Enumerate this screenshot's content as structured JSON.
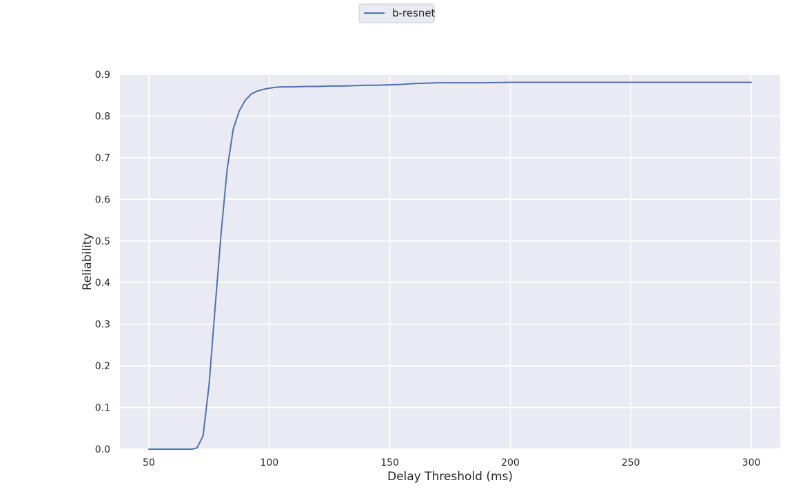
{
  "chart_data": {
    "type": "line",
    "title": "",
    "xlabel": "Delay Threshold (ms)",
    "ylabel": "Reliability",
    "xlim": [
      38,
      312
    ],
    "ylim": [
      0,
      0.9
    ],
    "xticks": [
      50,
      100,
      150,
      200,
      250,
      300
    ],
    "yticks": [
      0.0,
      0.1,
      0.2,
      0.3,
      0.4,
      0.5,
      0.6,
      0.7,
      0.8,
      0.9
    ],
    "grid": true,
    "legend_position": "top-center",
    "series": [
      {
        "name": "b-resnet",
        "color": "#4c72b0",
        "x": [
          50,
          55,
          60,
          65,
          68,
          70,
          72.5,
          75,
          77.5,
          80,
          82.5,
          85,
          87.5,
          90,
          92.5,
          95,
          97.5,
          100,
          102.5,
          105,
          110,
          115,
          120,
          125,
          130,
          135,
          140,
          145,
          150,
          155,
          160,
          165,
          170,
          180,
          190,
          200,
          220,
          250,
          280,
          300
        ],
        "y": [
          0.0,
          0.0,
          0.0,
          0.0,
          0.0,
          0.003,
          0.032,
          0.155,
          0.34,
          0.52,
          0.672,
          0.768,
          0.812,
          0.838,
          0.853,
          0.86,
          0.864,
          0.867,
          0.869,
          0.87,
          0.87,
          0.871,
          0.871,
          0.872,
          0.872,
          0.873,
          0.874,
          0.874,
          0.875,
          0.876,
          0.878,
          0.879,
          0.88,
          0.88,
          0.88,
          0.881,
          0.881,
          0.881,
          0.881,
          0.881
        ]
      }
    ]
  },
  "legend": {
    "label": "b-resnet"
  }
}
